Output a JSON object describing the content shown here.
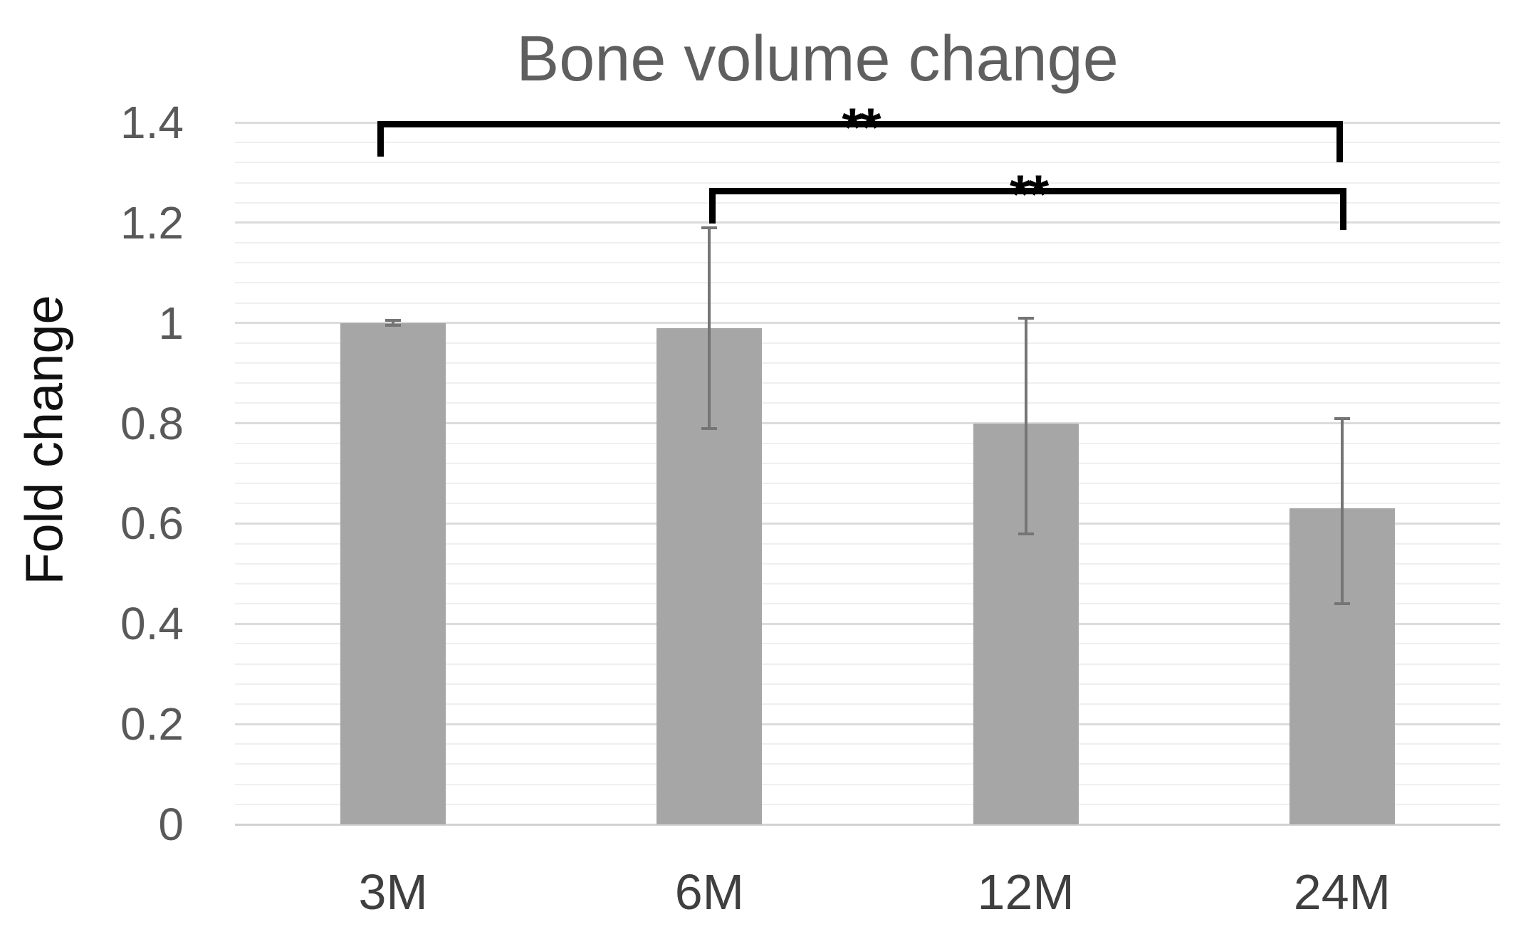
{
  "chart_data": {
    "type": "bar",
    "title": "Bone volume change",
    "xlabel": "",
    "ylabel": "Fold change",
    "categories": [
      "3M",
      "6M",
      "12M",
      "24M"
    ],
    "values": [
      1.0,
      0.99,
      0.8,
      0.63
    ],
    "error_upper": [
      1.005,
      1.19,
      1.01,
      0.81
    ],
    "error_lower": [
      0.995,
      0.79,
      0.58,
      0.44
    ],
    "ylim": [
      0,
      1.4
    ],
    "ytick_step": 0.2,
    "yticks": [
      "1.4",
      "1.2",
      "1",
      "0.8",
      "0.6",
      "0.4",
      "0.2",
      "0"
    ],
    "ytick_values": [
      1.4,
      1.2,
      1.0,
      0.8,
      0.6,
      0.4,
      0.2,
      0
    ],
    "minor_grid_step": 0.04,
    "grid": true,
    "legend_position": "none",
    "significance_brackets": [
      {
        "from": "3M",
        "to": "24M",
        "label": "**"
      },
      {
        "from": "6M",
        "to": "24M",
        "label": "**"
      }
    ]
  },
  "colors": {
    "bar": "#a6a6a6",
    "error_bar": "#757575",
    "grid_minor": "#efefef",
    "grid_major": "#dcdcdc",
    "baseline": "#d2d2d2",
    "bracket": "#000000",
    "title_text": "#5f5f5f",
    "tick_text": "#595959",
    "category_text": "#3f3f3f",
    "axis_title_text": "#111111",
    "background": "#ffffff"
  }
}
